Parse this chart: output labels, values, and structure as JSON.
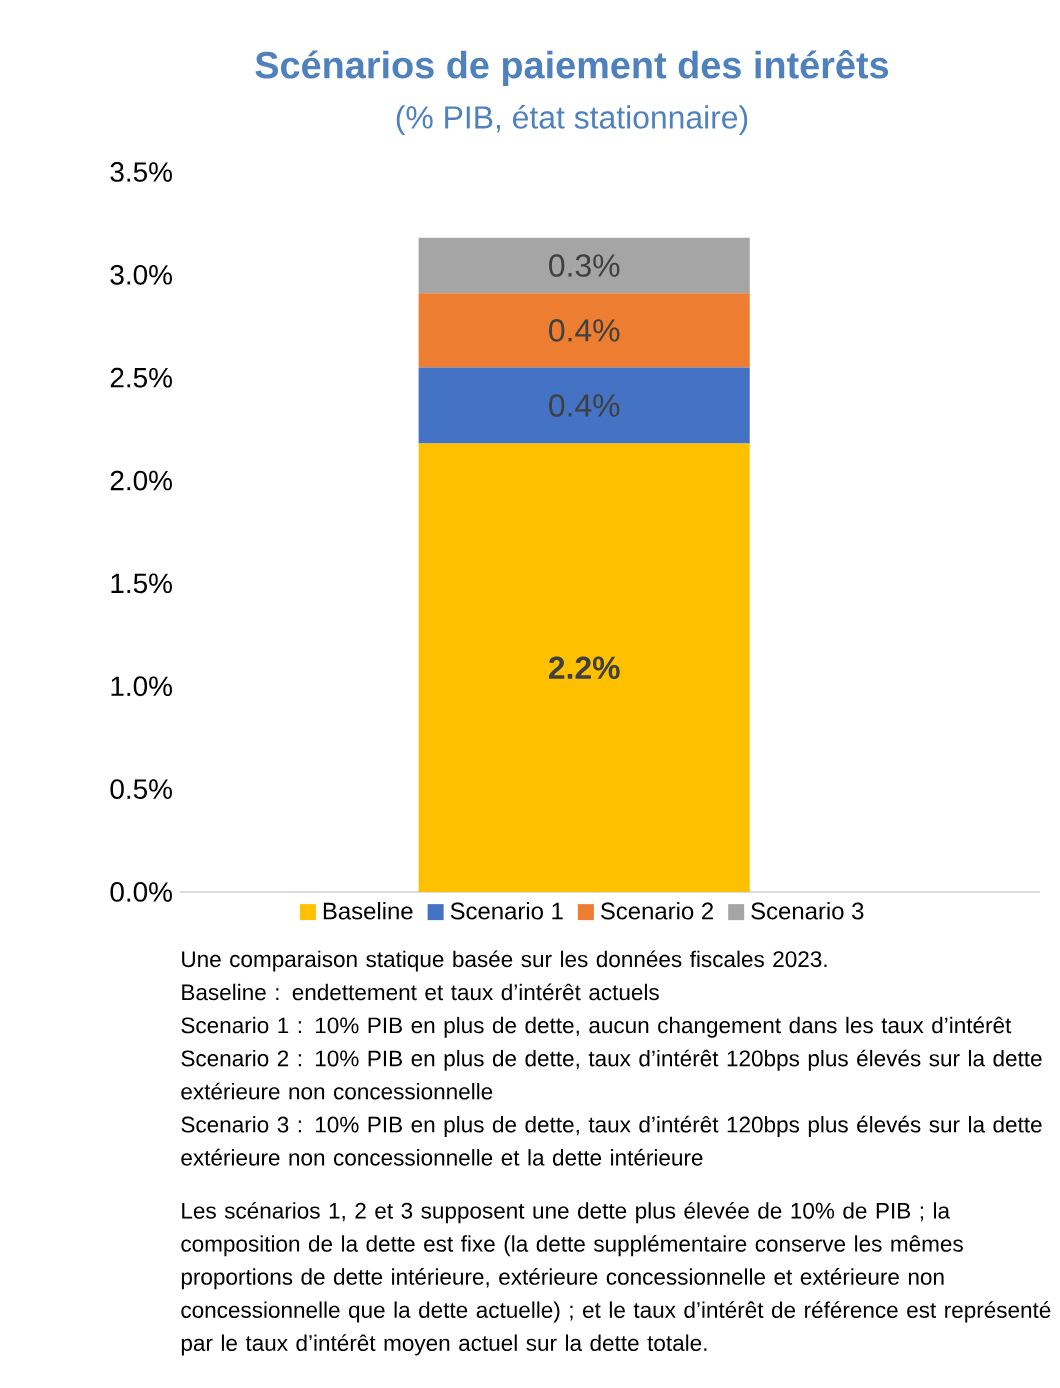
{
  "chart_data": {
    "type": "bar",
    "title": "Scénarios de paiement des intérêts",
    "subtitle": "(% PIB, état stationnaire)",
    "categories": [
      null
    ],
    "stacked": true,
    "legend": "bottom",
    "series": [
      {
        "name": "Baseline",
        "color": "#ffc000",
        "values": [
          2.18
        ],
        "value_labels": [
          "2.2%"
        ]
      },
      {
        "name": "Scenario 1",
        "color": "#4472c4",
        "values": [
          0.37
        ],
        "value_labels": [
          "0.4%"
        ]
      },
      {
        "name": "Scenario 2",
        "color": "#ed7d31",
        "values": [
          0.36
        ],
        "value_labels": [
          "0.4%"
        ]
      },
      {
        "name": "Scenario 3",
        "color": "#a5a5a5",
        "values": [
          0.27
        ],
        "value_labels": [
          "0.3%"
        ]
      }
    ],
    "ylim": [
      0,
      3.5
    ],
    "yticks": [
      {
        "value": 0,
        "label": "0.0%"
      },
      {
        "value": 0.5,
        "label": "0.5%"
      },
      {
        "value": 1,
        "label": "1.0%"
      },
      {
        "value": 1.5,
        "label": "1.5%"
      },
      {
        "value": 2,
        "label": "2.0%"
      },
      {
        "value": 2.5,
        "label": "2.5%"
      },
      {
        "value": 3,
        "label": "3.0%"
      },
      {
        "value": 3.5,
        "label": "3.5%"
      }
    ],
    "annotations": [
      "Une comparaison statique basée sur les données fiscales 2023.",
      "Baseline : endettement et taux d’intérêt actuels",
      "Scenario 1 : 10% PIB en plus de dette, aucun changement dans les taux d’intérêt",
      "Scenario 2 : 10% PIB en plus de dette, taux d’intérêt 120bps plus élevés sur la dette extérieure non concessionnelle",
      "Scenario 3 : 10% PIB en plus de dette, taux d’intérêt 120bps plus élevés sur la dette extérieure non concessionnelle et la dette intérieure",
      "Les scénarios 1, 2 et 3 supposent une dette plus élevée de 10% de PIB ; la composition de la dette est fixe (la dette supplémentaire conserve les mêmes proportions de dette intérieure, extérieure concessionnelle et extérieure non concessionnelle que la dette actuelle) ; et le taux d’intérêt de référence est représenté par le taux d’intérêt moyen actuel sur la dette totale."
    ]
  }
}
